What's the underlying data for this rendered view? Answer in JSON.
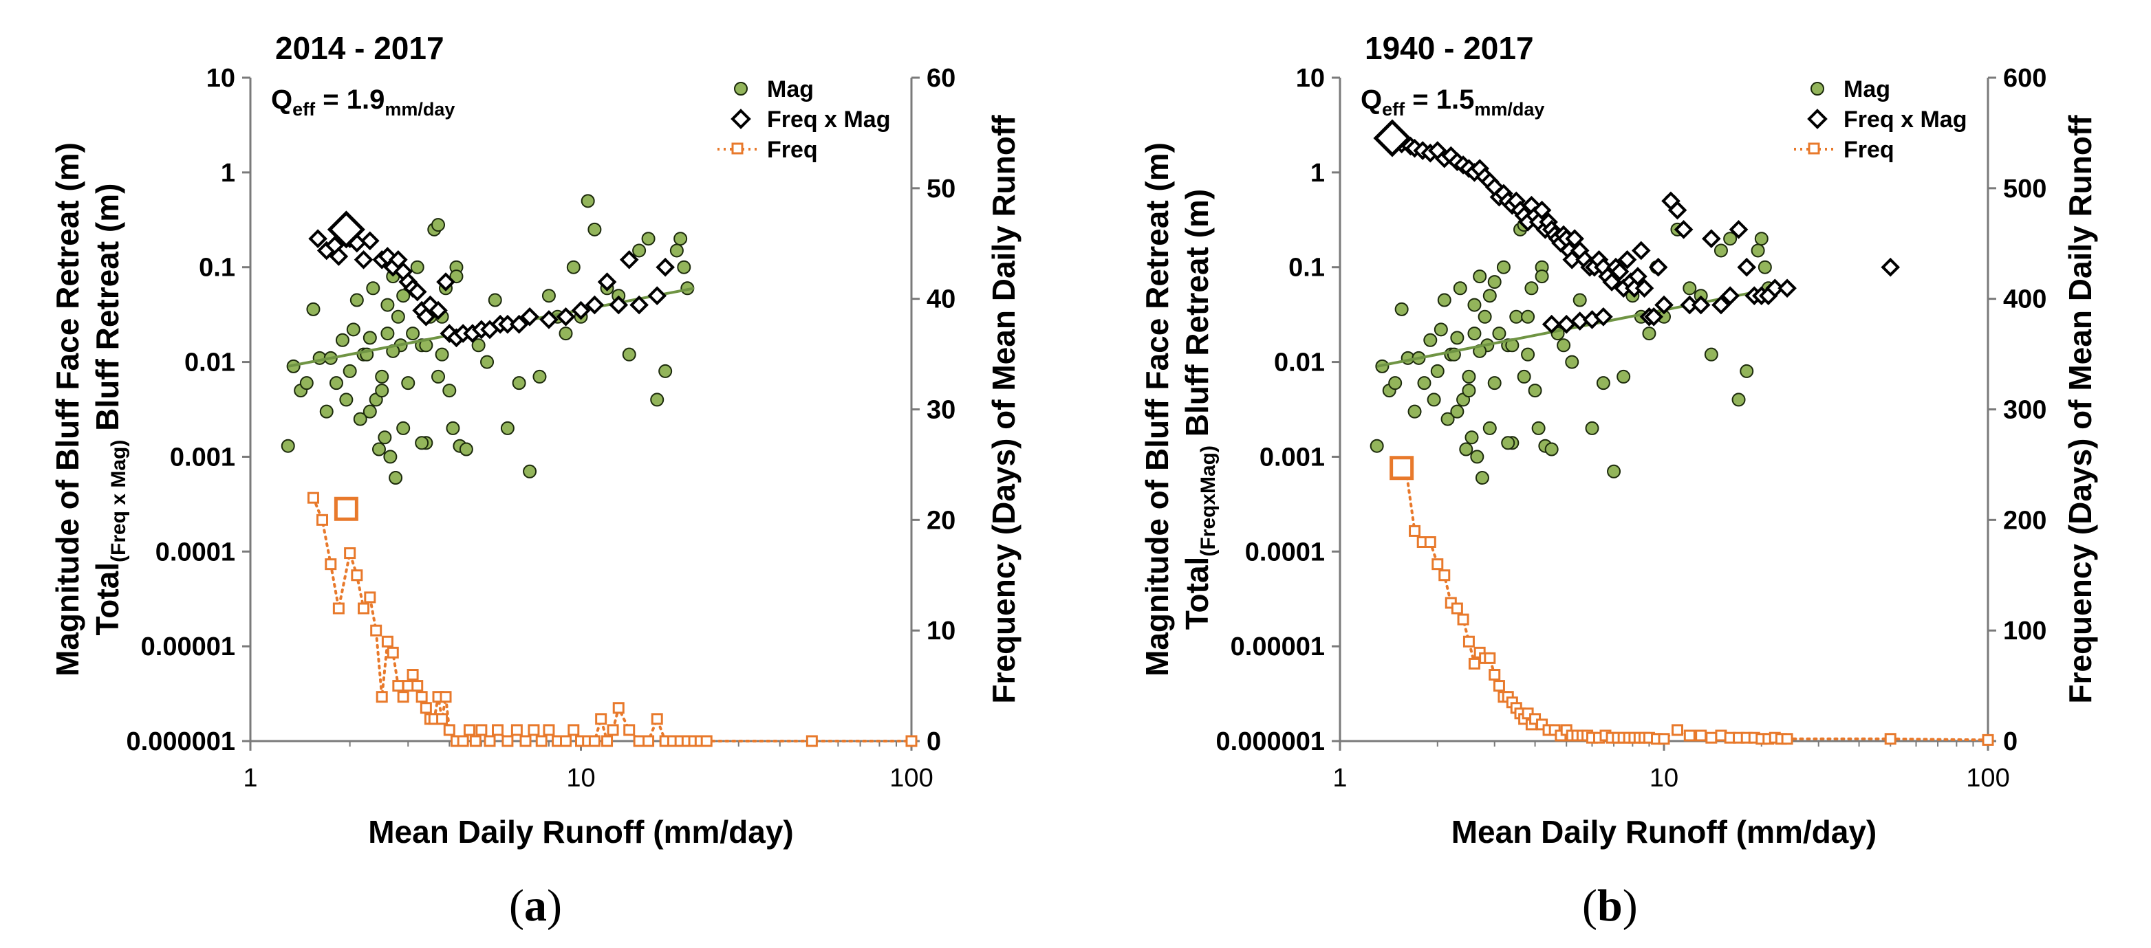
{
  "chart_data": [
    {
      "type": "scatter",
      "panel": "a",
      "title": "2014 - 2017",
      "annotation": {
        "text_main": "Q",
        "text_sub1": "eff",
        "text_eq": " = 1.9",
        "text_sub2": "mm/day"
      },
      "xlabel": "Mean Daily Runoff (mm/day)",
      "ylabel_left_line1": "Magnitude of Bluff Face Retreat (m)",
      "ylabel_left_line2_main": "Total",
      "ylabel_left_line2_sub": "(Freq x Mag)",
      "ylabel_left_line2_tail": " Bluff  Retreat (m)",
      "ylabel_right": "Frequency (Days) of Mean Daily Runoff",
      "xscale": "log",
      "xlim": [
        1,
        100
      ],
      "yscale": "log",
      "ylim": [
        1e-06,
        10
      ],
      "y2lim": [
        0,
        60
      ],
      "x_ticks": [
        "1",
        "10",
        "100"
      ],
      "y_ticks": [
        "10",
        "1",
        "0.1",
        "0.01",
        "0.001",
        "0.0001",
        "0.00001",
        "0.000001"
      ],
      "y2_ticks": [
        "60",
        "50",
        "40",
        "30",
        "20",
        "10",
        "0"
      ],
      "legend": {
        "position": "top-right",
        "mag": "Mag",
        "fxm": "Freq x Mag",
        "freq": "Freq"
      },
      "colors": {
        "mag": "#93b55b",
        "mag_edge": "#1c2a0c",
        "trend": "#6f9443",
        "fxm": "#000000",
        "freq": "#e8792b"
      },
      "trendline": {
        "x": [
          1.3,
          22
        ],
        "y": [
          0.009,
          0.06
        ]
      },
      "mag": {
        "x": [
          1.3,
          1.35,
          1.42,
          1.48,
          1.55,
          1.62,
          1.7,
          1.75,
          1.82,
          1.9,
          1.95,
          2.0,
          2.05,
          2.1,
          2.15,
          2.2,
          2.25,
          2.3,
          2.35,
          2.4,
          2.45,
          2.5,
          2.55,
          2.6,
          2.65,
          2.7,
          2.75,
          2.8,
          2.85,
          2.9,
          3.0,
          3.1,
          3.2,
          3.3,
          3.4,
          3.5,
          3.6,
          3.7,
          3.8,
          3.9,
          4.0,
          4.1,
          4.2,
          4.3,
          4.5,
          4.7,
          4.9,
          5.2,
          5.5,
          6.0,
          6.5,
          7.0,
          7.5,
          8.0,
          8.5,
          9.0,
          9.5,
          10.0,
          10.5,
          11.0,
          12.0,
          13.0,
          14.0,
          15.0,
          16.0,
          17.0,
          18.0,
          19.5,
          20.0,
          20.5,
          21.0,
          2.3,
          2.5,
          2.7,
          3.0,
          3.4,
          3.8,
          4.2,
          2.6,
          2.9,
          3.3,
          3.7
        ],
        "y": [
          0.0013,
          0.009,
          0.005,
          0.006,
          0.036,
          0.011,
          0.003,
          0.011,
          0.006,
          0.017,
          0.004,
          0.008,
          0.022,
          0.045,
          0.0025,
          0.012,
          0.012,
          0.018,
          0.06,
          0.004,
          0.0012,
          0.007,
          0.0016,
          0.04,
          0.001,
          0.08,
          0.0006,
          0.03,
          0.015,
          0.05,
          0.07,
          0.02,
          0.1,
          0.015,
          0.015,
          0.03,
          0.25,
          0.28,
          0.012,
          0.06,
          0.005,
          0.002,
          0.1,
          0.0013,
          0.0012,
          0.02,
          0.015,
          0.01,
          0.045,
          0.002,
          0.006,
          0.0007,
          0.007,
          0.05,
          0.03,
          0.02,
          0.1,
          0.03,
          0.5,
          0.25,
          0.06,
          0.05,
          0.012,
          0.15,
          0.2,
          0.004,
          0.008,
          0.15,
          0.2,
          0.1,
          0.06,
          0.003,
          0.005,
          0.013,
          0.006,
          0.0014,
          0.03,
          0.08,
          0.02,
          0.002,
          0.0014,
          0.007
        ]
      },
      "fxm": {
        "x": [
          1.6,
          1.7,
          1.8,
          1.85,
          2.0,
          2.1,
          2.2,
          2.3,
          2.5,
          2.6,
          2.7,
          2.8,
          2.9,
          3.0,
          3.1,
          3.2,
          3.3,
          3.4,
          3.5,
          3.7,
          3.9,
          4.0,
          4.2,
          4.4,
          4.7,
          5.0,
          5.3,
          5.7,
          6.0,
          6.5,
          7.0,
          8.0,
          9.0,
          10.0,
          11.0,
          12.0,
          13.0,
          14.0,
          15.0,
          17.0,
          18.0
        ],
        "y": [
          0.2,
          0.15,
          0.17,
          0.13,
          0.2,
          0.18,
          0.12,
          0.19,
          0.12,
          0.13,
          0.1,
          0.12,
          0.09,
          0.07,
          0.06,
          0.055,
          0.035,
          0.03,
          0.04,
          0.035,
          0.07,
          0.02,
          0.018,
          0.02,
          0.02,
          0.022,
          0.022,
          0.025,
          0.025,
          0.025,
          0.03,
          0.028,
          0.03,
          0.035,
          0.04,
          0.07,
          0.04,
          0.12,
          0.04,
          0.05,
          0.1
        ]
      },
      "fxm_peak": {
        "x": 1.95,
        "y": 0.25
      },
      "freq": {
        "x": [
          1.55,
          1.65,
          1.75,
          1.85,
          2.0,
          2.1,
          2.2,
          2.3,
          2.4,
          2.5,
          2.6,
          2.7,
          2.8,
          2.9,
          3.0,
          3.1,
          3.2,
          3.3,
          3.4,
          3.5,
          3.6,
          3.7,
          3.8,
          3.9,
          4.0,
          4.2,
          4.4,
          4.6,
          4.8,
          5.0,
          5.3,
          5.6,
          6.0,
          6.4,
          6.8,
          7.2,
          7.6,
          8.0,
          8.5,
          9.0,
          9.5,
          10.0,
          10.5,
          11.0,
          11.5,
          12.0,
          12.5,
          13.0,
          14.0,
          15.0,
          16.0,
          17.0,
          18.0,
          19.0,
          20.0,
          21.0,
          22.0,
          23.0,
          24.0,
          50.0,
          100.0
        ],
        "y": [
          22,
          20,
          16,
          12,
          17,
          15,
          12,
          13,
          10,
          4,
          9,
          8,
          5,
          4,
          5,
          6,
          5,
          4,
          3,
          2,
          2,
          4,
          2,
          4,
          1,
          0,
          0,
          1,
          0,
          1,
          0,
          1,
          0,
          1,
          0,
          1,
          0,
          1,
          0,
          0,
          1,
          0,
          0,
          0,
          2,
          0,
          1,
          3,
          1,
          0,
          0,
          2,
          0,
          0,
          0,
          0,
          0,
          0,
          0,
          0,
          0
        ]
      },
      "freq_peak": {
        "x": 1.95,
        "y": 21
      }
    },
    {
      "type": "scatter",
      "panel": "b",
      "title": "1940 - 2017",
      "annotation": {
        "text_main": "Q",
        "text_sub1": "eff",
        "text_eq": " = 1.5",
        "text_sub2": "mm/day"
      },
      "xlabel": "Mean Daily Runoff (mm/day)",
      "ylabel_left_line1": "Magnitude of Bluff Face Retreat (m)",
      "ylabel_left_line2_main": "Total",
      "ylabel_left_line2_sub": "(FreqxMag)",
      "ylabel_left_line2_tail": " Bluff  Retreat (m)",
      "ylabel_right": "Frequency (Days) of Mean Daily Runoff",
      "xscale": "log",
      "xlim": [
        1,
        100
      ],
      "yscale": "log",
      "ylim": [
        1e-06,
        10
      ],
      "y2lim": [
        0,
        600
      ],
      "x_ticks": [
        "1",
        "10",
        "100"
      ],
      "y_ticks": [
        "10",
        "1",
        "0.1",
        "0.01",
        "0.001",
        "0.0001",
        "0.00001",
        "0.000001"
      ],
      "y2_ticks": [
        "600",
        "500",
        "400",
        "300",
        "200",
        "100",
        "0"
      ],
      "legend": {
        "position": "top-right",
        "mag": "Mag",
        "fxm": "Freq x Mag",
        "freq": "Freq"
      },
      "colors": {
        "mag": "#93b55b",
        "mag_edge": "#1c2a0c",
        "trend": "#6f9443",
        "fxm": "#000000",
        "freq": "#e8792b"
      },
      "trendline": {
        "x": [
          1.3,
          22
        ],
        "y": [
          0.009,
          0.06
        ]
      },
      "mag": {
        "x": [
          1.3,
          1.35,
          1.42,
          1.48,
          1.55,
          1.62,
          1.7,
          1.75,
          1.82,
          1.9,
          1.95,
          2.0,
          2.05,
          2.1,
          2.15,
          2.2,
          2.25,
          2.3,
          2.35,
          2.4,
          2.45,
          2.5,
          2.55,
          2.6,
          2.65,
          2.7,
          2.75,
          2.8,
          2.85,
          2.9,
          3.0,
          3.1,
          3.2,
          3.3,
          3.4,
          3.5,
          3.6,
          3.7,
          3.8,
          3.9,
          4.0,
          4.1,
          4.2,
          4.3,
          4.5,
          4.7,
          4.9,
          5.2,
          5.5,
          6.0,
          6.5,
          7.0,
          7.5,
          8.0,
          8.5,
          9.0,
          9.5,
          10.0,
          10.5,
          11.0,
          12.0,
          13.0,
          14.0,
          15.0,
          16.0,
          17.0,
          18.0,
          19.5,
          20.0,
          20.5,
          21.0,
          2.3,
          2.5,
          2.7,
          3.0,
          3.4,
          3.8,
          4.2,
          2.6,
          2.9,
          3.3,
          3.7
        ],
        "y": [
          0.0013,
          0.009,
          0.005,
          0.006,
          0.036,
          0.011,
          0.003,
          0.011,
          0.006,
          0.017,
          0.004,
          0.008,
          0.022,
          0.045,
          0.0025,
          0.012,
          0.012,
          0.018,
          0.06,
          0.004,
          0.0012,
          0.007,
          0.0016,
          0.04,
          0.001,
          0.08,
          0.0006,
          0.03,
          0.015,
          0.05,
          0.07,
          0.02,
          0.1,
          0.015,
          0.015,
          0.03,
          0.25,
          0.28,
          0.012,
          0.06,
          0.005,
          0.002,
          0.1,
          0.0013,
          0.0012,
          0.02,
          0.015,
          0.01,
          0.045,
          0.002,
          0.006,
          0.0007,
          0.007,
          0.05,
          0.03,
          0.02,
          0.1,
          0.03,
          0.5,
          0.25,
          0.06,
          0.05,
          0.012,
          0.15,
          0.2,
          0.004,
          0.008,
          0.15,
          0.2,
          0.1,
          0.06,
          0.003,
          0.005,
          0.013,
          0.006,
          0.0014,
          0.03,
          0.08,
          0.02,
          0.002,
          0.0014,
          0.007
        ]
      },
      "fxm": {
        "x": [
          1.55,
          1.65,
          1.7,
          1.8,
          1.9,
          2.0,
          2.1,
          2.2,
          2.3,
          2.4,
          2.5,
          2.6,
          2.7,
          2.8,
          2.9,
          3.0,
          3.1,
          3.2,
          3.3,
          3.4,
          3.5,
          3.6,
          3.7,
          3.8,
          3.9,
          4.0,
          4.1,
          4.2,
          4.3,
          4.4,
          4.5,
          4.6,
          4.7,
          4.8,
          4.9,
          5.0,
          5.1,
          5.2,
          5.3,
          5.5,
          5.7,
          5.9,
          6.1,
          6.3,
          6.5,
          6.7,
          6.9,
          7.1,
          7.3,
          7.5,
          7.7,
          7.9,
          8.1,
          8.3,
          8.5,
          8.7,
          9.0,
          9.3,
          9.6,
          10.0,
          10.5,
          11.0,
          11.5,
          12.0,
          13.0,
          14.0,
          15.0,
          16.0,
          17.0,
          18.0,
          19.0,
          20.0,
          21.0,
          22.0,
          24.0,
          50.0,
          4.5,
          5.0,
          5.5,
          6.0,
          6.5
        ],
        "y": [
          2.0,
          1.9,
          1.8,
          1.7,
          1.6,
          1.7,
          1.4,
          1.5,
          1.3,
          1.2,
          1.1,
          1.0,
          1.1,
          0.9,
          0.8,
          0.7,
          0.55,
          0.6,
          0.5,
          0.45,
          0.5,
          0.4,
          0.35,
          0.3,
          0.45,
          0.35,
          0.3,
          0.4,
          0.25,
          0.3,
          0.25,
          0.22,
          0.2,
          0.18,
          0.22,
          0.2,
          0.15,
          0.12,
          0.2,
          0.15,
          0.12,
          0.1,
          0.1,
          0.12,
          0.1,
          0.08,
          0.07,
          0.1,
          0.09,
          0.06,
          0.12,
          0.07,
          0.06,
          0.08,
          0.15,
          0.06,
          0.03,
          0.03,
          0.1,
          0.04,
          0.5,
          0.4,
          0.25,
          0.04,
          0.04,
          0.2,
          0.04,
          0.05,
          0.25,
          0.1,
          0.05,
          0.05,
          0.05,
          0.06,
          0.06,
          0.1,
          0.025,
          0.025,
          0.027,
          0.028,
          0.03
        ]
      },
      "fxm_peak": {
        "x": 1.45,
        "y": 2.3
      },
      "freq": {
        "x": [
          1.55,
          1.6,
          1.7,
          1.8,
          1.9,
          2.0,
          2.1,
          2.2,
          2.3,
          2.4,
          2.5,
          2.6,
          2.7,
          2.8,
          2.9,
          3.0,
          3.1,
          3.2,
          3.3,
          3.4,
          3.5,
          3.6,
          3.7,
          3.8,
          3.9,
          4.0,
          4.2,
          4.4,
          4.6,
          4.8,
          5.0,
          5.2,
          5.4,
          5.6,
          5.8,
          6.0,
          6.3,
          6.6,
          6.9,
          7.2,
          7.5,
          7.8,
          8.1,
          8.4,
          8.7,
          9.0,
          9.5,
          10.0,
          11.0,
          12.0,
          13.0,
          14.0,
          15.0,
          16.0,
          17.0,
          18.0,
          19.0,
          20.0,
          21.0,
          22.0,
          23.0,
          24.0,
          50.0,
          100.0
        ],
        "y": [
          250,
          245,
          190,
          180,
          180,
          160,
          150,
          125,
          120,
          110,
          90,
          70,
          80,
          75,
          75,
          60,
          50,
          40,
          40,
          35,
          30,
          25,
          20,
          25,
          15,
          20,
          15,
          10,
          10,
          5,
          10,
          5,
          5,
          5,
          5,
          3,
          3,
          5,
          3,
          3,
          3,
          3,
          3,
          3,
          3,
          3,
          2,
          2,
          10,
          5,
          5,
          3,
          5,
          3,
          3,
          3,
          3,
          2,
          2,
          3,
          2,
          2,
          2,
          1
        ]
      },
      "freq_peak": {
        "x": 1.55,
        "y": 247
      }
    }
  ],
  "panel_labels": [
    "a",
    "b"
  ]
}
